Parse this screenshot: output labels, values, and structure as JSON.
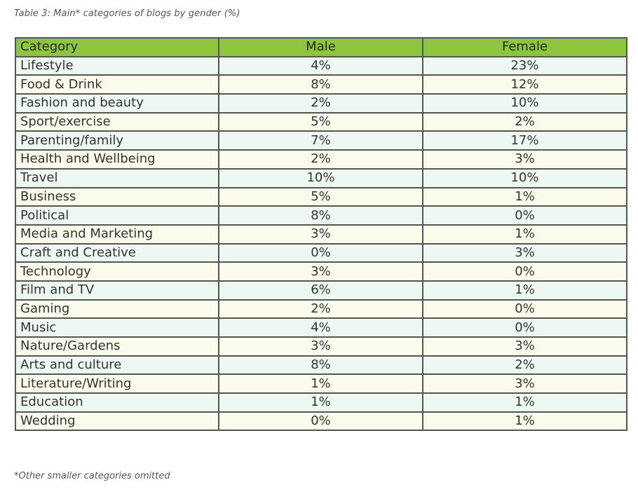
{
  "caption": "Table 3: Main* categories of blogs by gender (%)",
  "footnote": "*Other smaller categories omitted",
  "table": {
    "headers": [
      "Category",
      "Male",
      "Female"
    ],
    "rows": [
      [
        "Lifestyle",
        "4%",
        "23%"
      ],
      [
        "Food & Drink",
        "8%",
        "12%"
      ],
      [
        "Fashion and beauty",
        "2%",
        "10%"
      ],
      [
        "Sport/exercise",
        "5%",
        "2%"
      ],
      [
        "Parenting/family",
        "7%",
        "17%"
      ],
      [
        "Health and Wellbeing",
        "2%",
        "3%"
      ],
      [
        "Travel",
        "10%",
        "10%"
      ],
      [
        "Business",
        "5%",
        "1%"
      ],
      [
        "Political",
        "8%",
        "0%"
      ],
      [
        "Media and Marketing",
        "3%",
        "1%"
      ],
      [
        "Craft and Creative",
        "0%",
        "3%"
      ],
      [
        "Technology",
        "3%",
        "0%"
      ],
      [
        "Film and TV",
        "6%",
        "1%"
      ],
      [
        "Gaming",
        "2%",
        "0%"
      ],
      [
        "Music",
        "4%",
        "0%"
      ],
      [
        "Nature/Gardens",
        "3%",
        "3%"
      ],
      [
        "Arts and culture",
        "8%",
        "2%"
      ],
      [
        "Literature/Writing",
        "1%",
        "3%"
      ],
      [
        "Education",
        "1%",
        "1%"
      ],
      [
        "Wedding",
        "0%",
        "1%"
      ]
    ]
  },
  "colors": {
    "header_bg": "#8cc63f",
    "row_odd_bg": "#eef8f3",
    "row_even_bg": "#fbfbec",
    "border": "#555555"
  }
}
